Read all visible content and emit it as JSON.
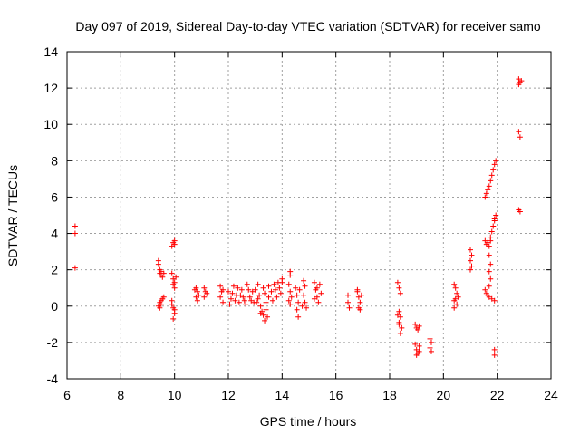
{
  "chart_data": {
    "type": "scatter",
    "title": "Day 097 of 2019, Sidereal Day-to-day VTEC variation (SDTVAR) for receiver samo",
    "xlabel": "GPS time / hours",
    "ylabel": "SDTVAR / TECUs",
    "xlim": [
      6,
      24
    ],
    "ylim": [
      -4,
      14
    ],
    "xticks": [
      "6",
      "8",
      "10",
      "12",
      "14",
      "16",
      "18",
      "20",
      "22",
      "24"
    ],
    "yticks": [
      "-4",
      "-2",
      "0",
      "2",
      "4",
      "6",
      "8",
      "10",
      "12",
      "14"
    ],
    "grid": true,
    "marker": "+",
    "color": "#ff0000",
    "series": [
      {
        "name": "SDTVAR",
        "points": [
          [
            6.3,
            4.4
          ],
          [
            6.3,
            4.0
          ],
          [
            6.3,
            2.1
          ],
          [
            9.4,
            2.5
          ],
          [
            9.4,
            2.3
          ],
          [
            9.45,
            2.0
          ],
          [
            9.45,
            1.8
          ],
          [
            9.5,
            1.7
          ],
          [
            9.5,
            1.9
          ],
          [
            9.55,
            1.6
          ],
          [
            9.6,
            1.8
          ],
          [
            9.4,
            0.0
          ],
          [
            9.45,
            0.2
          ],
          [
            9.5,
            0.3
          ],
          [
            9.5,
            0.1
          ],
          [
            9.55,
            0.4
          ],
          [
            9.6,
            0.5
          ],
          [
            9.45,
            -0.1
          ],
          [
            9.9,
            1.8
          ],
          [
            9.95,
            1.5
          ],
          [
            10.0,
            1.3
          ],
          [
            10.0,
            1.0
          ],
          [
            9.95,
            1.2
          ],
          [
            10.05,
            1.6
          ],
          [
            9.95,
            3.5
          ],
          [
            10.0,
            3.4
          ],
          [
            10.0,
            3.6
          ],
          [
            9.9,
            3.3
          ],
          [
            9.9,
            0.3
          ],
          [
            9.95,
            -0.1
          ],
          [
            10.0,
            -0.4
          ],
          [
            9.95,
            -0.7
          ],
          [
            10.0,
            -0.2
          ],
          [
            9.9,
            0.1
          ],
          [
            10.8,
            1.0
          ],
          [
            10.85,
            0.8
          ],
          [
            10.8,
            0.5
          ],
          [
            10.85,
            0.3
          ],
          [
            10.9,
            0.6
          ],
          [
            10.75,
            0.9
          ],
          [
            11.1,
            1.0
          ],
          [
            11.15,
            0.8
          ],
          [
            11.1,
            0.5
          ],
          [
            11.2,
            0.7
          ],
          [
            11.7,
            1.1
          ],
          [
            11.75,
            0.8
          ],
          [
            11.7,
            0.5
          ],
          [
            11.8,
            0.9
          ],
          [
            11.8,
            0.2
          ],
          [
            12.0,
            0.8
          ],
          [
            12.1,
            0.4
          ],
          [
            12.2,
            1.1
          ],
          [
            12.3,
            0.6
          ],
          [
            12.4,
            0.2
          ],
          [
            12.5,
            0.9
          ],
          [
            12.6,
            0.3
          ],
          [
            12.7,
            1.2
          ],
          [
            12.8,
            0.5
          ],
          [
            12.9,
            0.8
          ],
          [
            12.05,
            0.1
          ],
          [
            12.25,
            0.3
          ],
          [
            12.45,
            0.6
          ],
          [
            12.65,
            0.1
          ],
          [
            12.85,
            0.3
          ],
          [
            12.15,
            0.7
          ],
          [
            12.35,
            1.0
          ],
          [
            12.55,
            0.5
          ],
          [
            12.75,
            0.9
          ],
          [
            12.95,
            0.2
          ],
          [
            13.0,
            0.9
          ],
          [
            13.1,
            0.4
          ],
          [
            13.2,
            0.0
          ],
          [
            13.3,
            -0.5
          ],
          [
            13.35,
            -0.8
          ],
          [
            13.25,
            -0.3
          ],
          [
            13.15,
            0.6
          ],
          [
            13.4,
            0.2
          ],
          [
            13.45,
            -0.6
          ],
          [
            13.5,
            0.5
          ],
          [
            13.1,
            1.2
          ],
          [
            13.3,
            1.0
          ],
          [
            13.5,
            1.1
          ],
          [
            13.05,
            0.2
          ],
          [
            13.2,
            -0.4
          ],
          [
            13.4,
            -0.2
          ],
          [
            13.35,
            0.7
          ],
          [
            13.6,
            0.8
          ],
          [
            13.7,
            1.2
          ],
          [
            13.8,
            0.5
          ],
          [
            13.9,
            1.0
          ],
          [
            14.0,
            1.3
          ],
          [
            13.65,
            0.3
          ],
          [
            13.75,
            0.9
          ],
          [
            13.85,
            1.3
          ],
          [
            13.95,
            0.7
          ],
          [
            14.0,
            1.5
          ],
          [
            14.3,
            1.9
          ],
          [
            14.3,
            1.7
          ],
          [
            14.25,
            1.2
          ],
          [
            14.3,
            0.8
          ],
          [
            14.35,
            0.5
          ],
          [
            14.3,
            0.1
          ],
          [
            14.25,
            0.3
          ],
          [
            14.5,
            1.0
          ],
          [
            14.55,
            0.6
          ],
          [
            14.6,
            0.2
          ],
          [
            14.55,
            -0.2
          ],
          [
            14.6,
            -0.6
          ],
          [
            14.65,
            0.9
          ],
          [
            14.8,
            1.4
          ],
          [
            14.85,
            1.1
          ],
          [
            14.8,
            0.6
          ],
          [
            14.85,
            0.2
          ],
          [
            14.9,
            -0.1
          ],
          [
            14.75,
            0.0
          ],
          [
            15.2,
            1.3
          ],
          [
            15.25,
            0.9
          ],
          [
            15.3,
            0.5
          ],
          [
            15.35,
            0.2
          ],
          [
            15.4,
            1.2
          ],
          [
            15.45,
            0.7
          ],
          [
            15.3,
            1.0
          ],
          [
            15.2,
            0.4
          ],
          [
            16.45,
            0.6
          ],
          [
            16.45,
            0.2
          ],
          [
            16.5,
            -0.1
          ],
          [
            16.8,
            0.8
          ],
          [
            16.85,
            0.5
          ],
          [
            16.9,
            0.2
          ],
          [
            16.85,
            -0.1
          ],
          [
            16.95,
            0.6
          ],
          [
            16.8,
            0.9
          ],
          [
            16.9,
            -0.2
          ],
          [
            18.3,
            1.3
          ],
          [
            18.35,
            1.0
          ],
          [
            18.4,
            0.7
          ],
          [
            18.35,
            -0.3
          ],
          [
            18.4,
            -0.6
          ],
          [
            18.35,
            -0.9
          ],
          [
            18.45,
            -1.2
          ],
          [
            18.4,
            -1.5
          ],
          [
            18.35,
            -1.0
          ],
          [
            18.3,
            -0.5
          ],
          [
            18.95,
            -1.0
          ],
          [
            19.0,
            -1.2
          ],
          [
            19.05,
            -1.3
          ],
          [
            19.1,
            -1.1
          ],
          [
            18.95,
            -2.1
          ],
          [
            19.0,
            -2.4
          ],
          [
            19.05,
            -2.6
          ],
          [
            19.1,
            -2.2
          ],
          [
            19.0,
            -2.7
          ],
          [
            19.1,
            -2.5
          ],
          [
            19.5,
            -1.8
          ],
          [
            19.55,
            -2.0
          ],
          [
            19.5,
            -2.3
          ],
          [
            19.55,
            -2.5
          ],
          [
            20.4,
            1.2
          ],
          [
            20.45,
            1.0
          ],
          [
            20.5,
            0.7
          ],
          [
            20.45,
            0.4
          ],
          [
            20.5,
            0.1
          ],
          [
            20.4,
            -0.1
          ],
          [
            20.55,
            0.5
          ],
          [
            20.4,
            0.3
          ],
          [
            21.0,
            3.1
          ],
          [
            21.05,
            2.8
          ],
          [
            21.0,
            2.5
          ],
          [
            21.05,
            2.2
          ],
          [
            21.0,
            2.0
          ],
          [
            21.55,
            6.0
          ],
          [
            21.6,
            6.2
          ],
          [
            21.65,
            6.4
          ],
          [
            21.7,
            6.6
          ],
          [
            21.75,
            6.9
          ],
          [
            21.8,
            7.2
          ],
          [
            21.85,
            7.5
          ],
          [
            21.9,
            7.8
          ],
          [
            21.95,
            8.0
          ],
          [
            21.55,
            3.6
          ],
          [
            21.6,
            3.4
          ],
          [
            21.65,
            3.5
          ],
          [
            21.7,
            3.3
          ],
          [
            21.75,
            3.6
          ],
          [
            21.7,
            2.8
          ],
          [
            21.75,
            2.3
          ],
          [
            21.7,
            1.9
          ],
          [
            21.75,
            1.5
          ],
          [
            21.7,
            1.1
          ],
          [
            21.75,
            3.8
          ],
          [
            21.8,
            4.1
          ],
          [
            21.85,
            4.4
          ],
          [
            21.9,
            4.7
          ],
          [
            21.95,
            5.0
          ],
          [
            21.9,
            4.8
          ],
          [
            21.55,
            0.9
          ],
          [
            21.6,
            0.7
          ],
          [
            21.65,
            0.6
          ],
          [
            21.7,
            0.5
          ],
          [
            21.8,
            0.4
          ],
          [
            21.9,
            0.3
          ],
          [
            21.9,
            -2.4
          ],
          [
            21.9,
            -2.7
          ],
          [
            22.8,
            12.5
          ],
          [
            22.85,
            12.3
          ],
          [
            22.8,
            12.2
          ],
          [
            22.9,
            12.4
          ],
          [
            22.8,
            9.6
          ],
          [
            22.85,
            9.3
          ],
          [
            22.8,
            5.3
          ],
          [
            22.85,
            5.2
          ]
        ]
      }
    ]
  }
}
